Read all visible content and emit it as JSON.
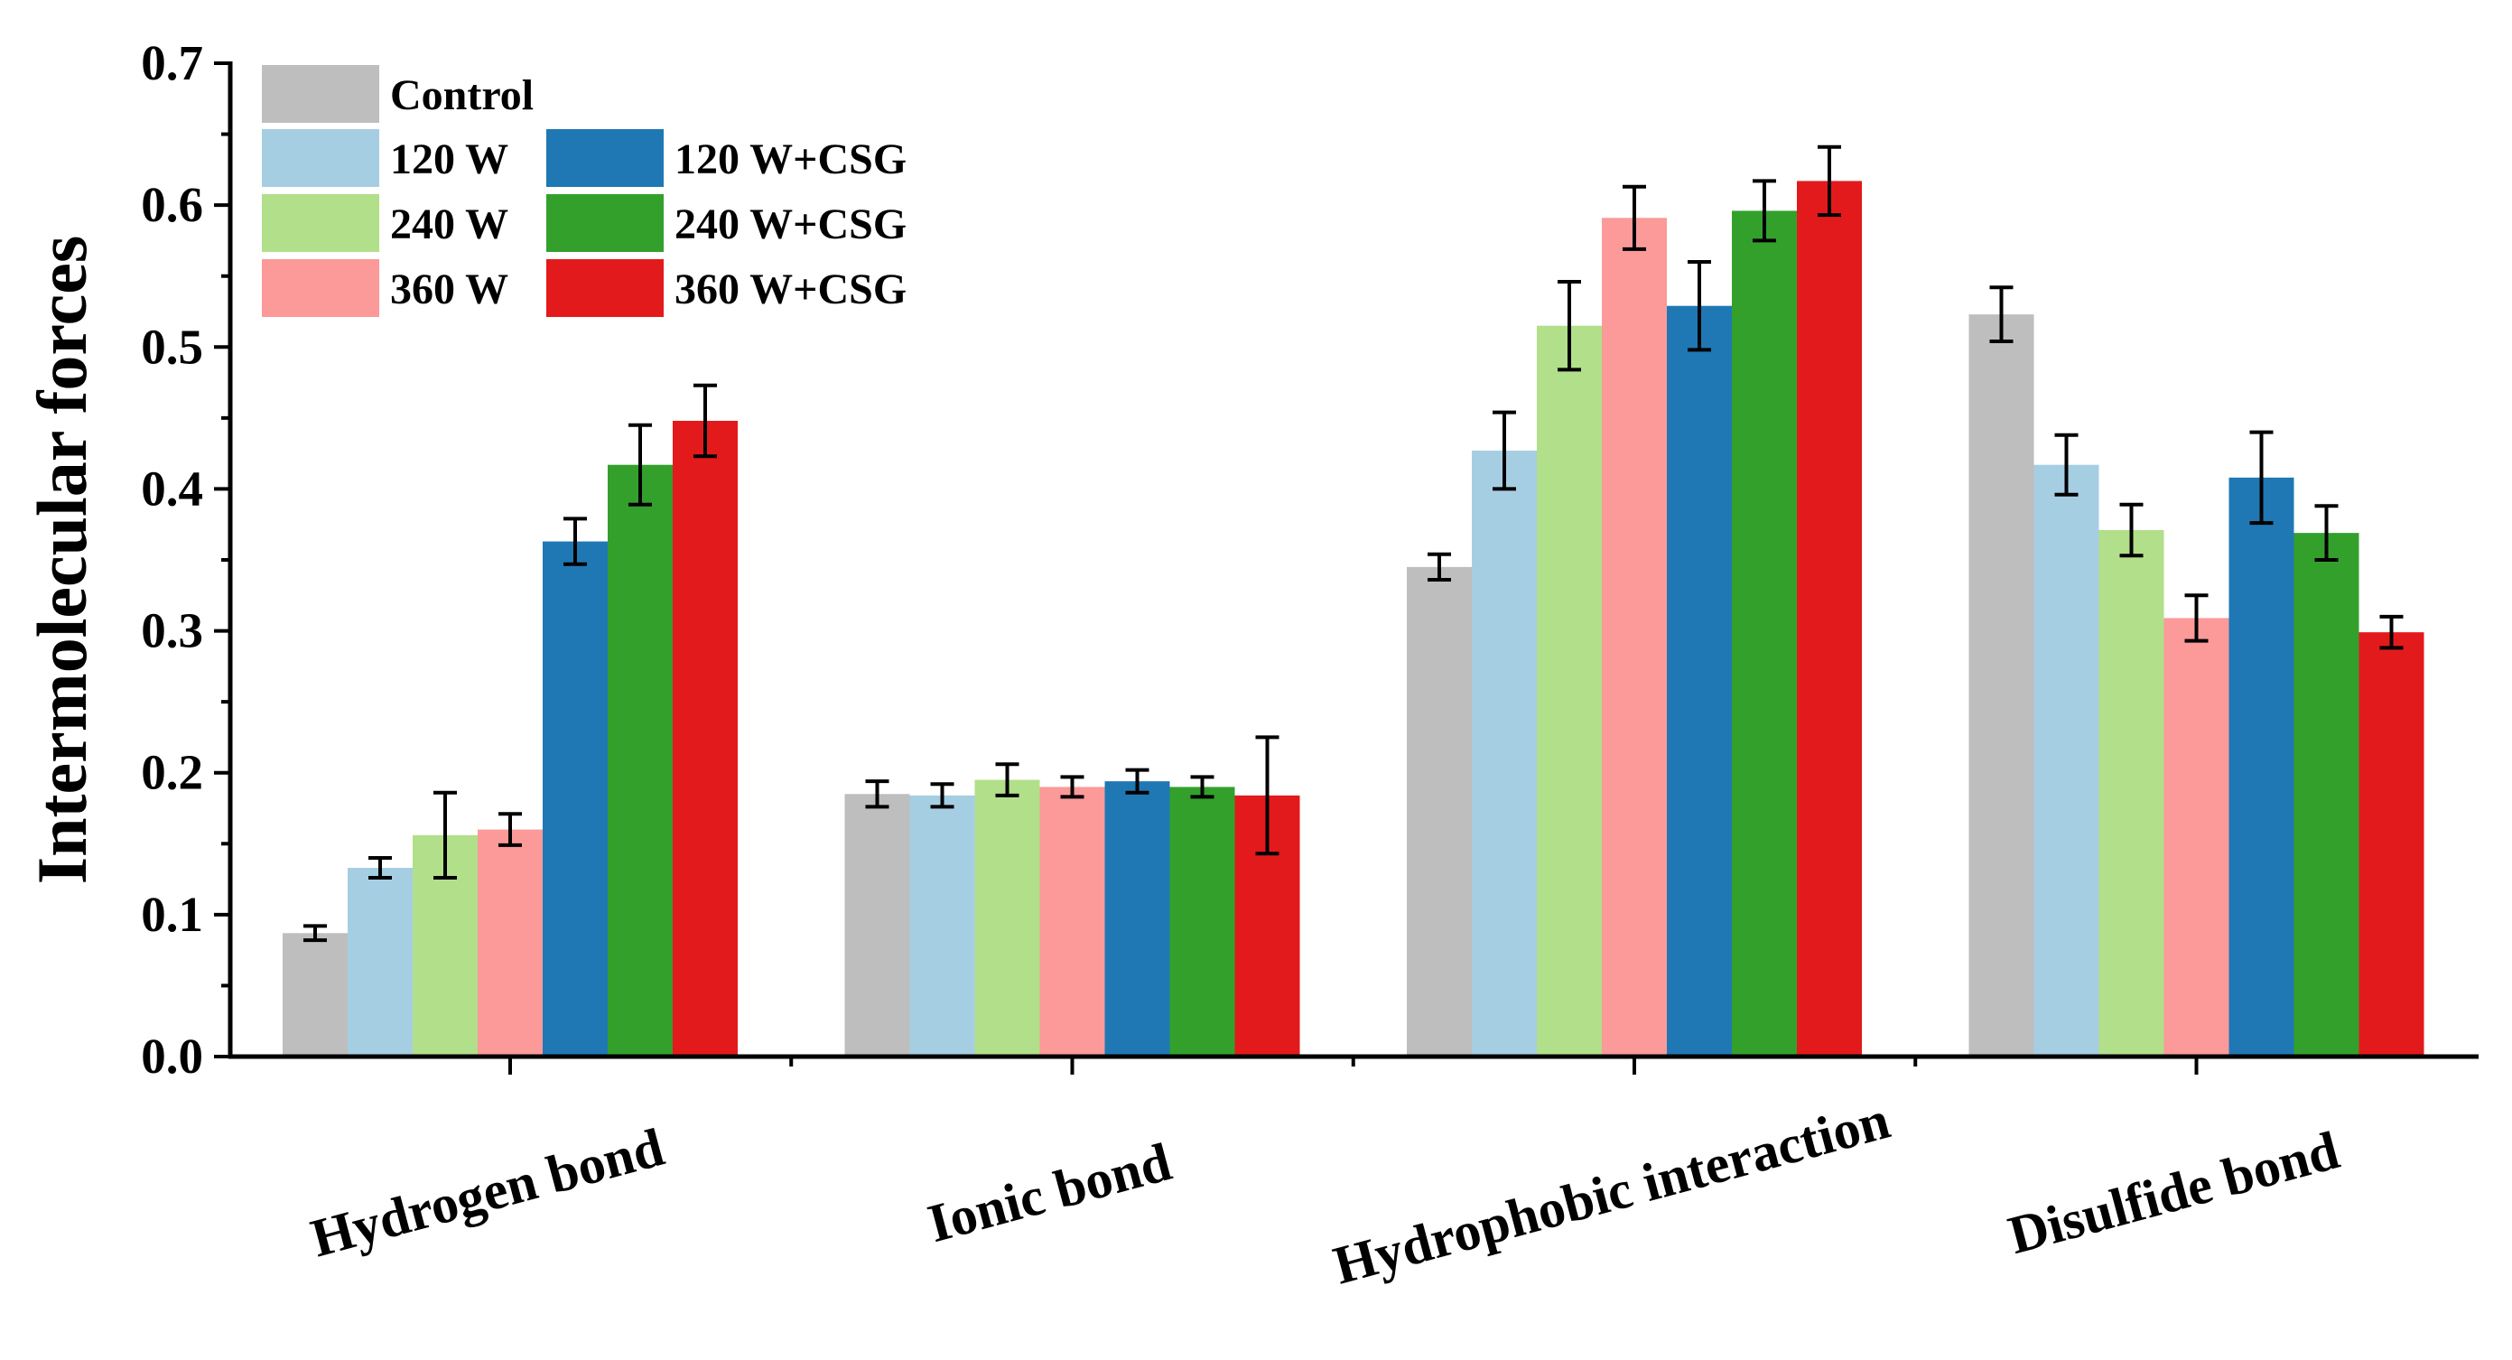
{
  "chart_data": {
    "type": "bar",
    "title": "",
    "xlabel": "",
    "ylabel": "Intermolecular forces",
    "ylim": [
      0,
      0.7
    ],
    "yticks": [
      "0.0",
      "0.1",
      "0.2",
      "0.3",
      "0.4",
      "0.5",
      "0.6",
      "0.7"
    ],
    "categories": [
      "Hydrogen bond",
      "Ionic bond",
      "Hydrophobic interaction",
      "Disulfide bond"
    ],
    "series": [
      {
        "name": "Control",
        "color": "#bebebe",
        "values": [
          0.087,
          0.185,
          0.345,
          0.523
        ],
        "errors": [
          0.005,
          0.009,
          0.009,
          0.019
        ]
      },
      {
        "name": "120 W",
        "color": "#a6cee3",
        "values": [
          0.133,
          0.184,
          0.427,
          0.417
        ],
        "errors": [
          0.007,
          0.008,
          0.027,
          0.021
        ]
      },
      {
        "name": "240 W",
        "color": "#b2df8a",
        "values": [
          0.156,
          0.195,
          0.515,
          0.371
        ],
        "errors": [
          0.03,
          0.011,
          0.031,
          0.018
        ]
      },
      {
        "name": "360 W",
        "color": "#fb9a99",
        "values": [
          0.16,
          0.19,
          0.591,
          0.309
        ],
        "errors": [
          0.011,
          0.007,
          0.022,
          0.016
        ]
      },
      {
        "name": "120 W+CSG",
        "color": "#1f78b4",
        "values": [
          0.363,
          0.194,
          0.529,
          0.408
        ],
        "errors": [
          0.016,
          0.008,
          0.031,
          0.032
        ]
      },
      {
        "name": "240 W+CSG",
        "color": "#33a02c",
        "values": [
          0.417,
          0.19,
          0.596,
          0.369
        ],
        "errors": [
          0.028,
          0.007,
          0.021,
          0.019
        ]
      },
      {
        "name": "360 W+CSG",
        "color": "#e31a1c",
        "values": [
          0.448,
          0.184,
          0.617,
          0.299
        ],
        "errors": [
          0.025,
          0.041,
          0.024,
          0.011
        ]
      }
    ],
    "legend_position": "top-left",
    "grid": false
  }
}
